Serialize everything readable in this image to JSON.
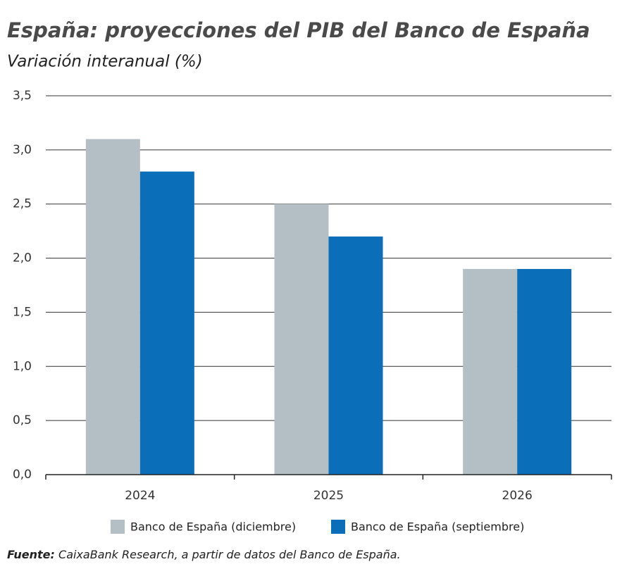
{
  "chart_data": {
    "type": "bar",
    "title": "España: proyecciones del PIB del Banco de España",
    "subtitle": "Variación interanual (%)",
    "categories": [
      "2024",
      "2025",
      "2026"
    ],
    "series": [
      {
        "name": "Banco de España (diciembre)",
        "color": "#b3bfc4",
        "values": [
          3.1,
          2.5,
          1.9
        ]
      },
      {
        "name": "Banco de España (septiembre)",
        "color": "#0a6fb8",
        "values": [
          2.8,
          2.2,
          1.9
        ]
      }
    ],
    "ylim": [
      0,
      3.5
    ],
    "yticks": [
      {
        "value": 0,
        "label": "0,0"
      },
      {
        "value": 0.5,
        "label": "0,5"
      },
      {
        "value": 1,
        "label": "1,0"
      },
      {
        "value": 1.5,
        "label": "1,5"
      },
      {
        "value": 2,
        "label": "2,0"
      },
      {
        "value": 2.5,
        "label": "2,5"
      },
      {
        "value": 3,
        "label": "3,0"
      },
      {
        "value": 3.5,
        "label": "3,5"
      }
    ],
    "grid": true,
    "source_label": "Fuente:",
    "source": "CaixaBank Research, a partir de datos del Banco de España."
  }
}
